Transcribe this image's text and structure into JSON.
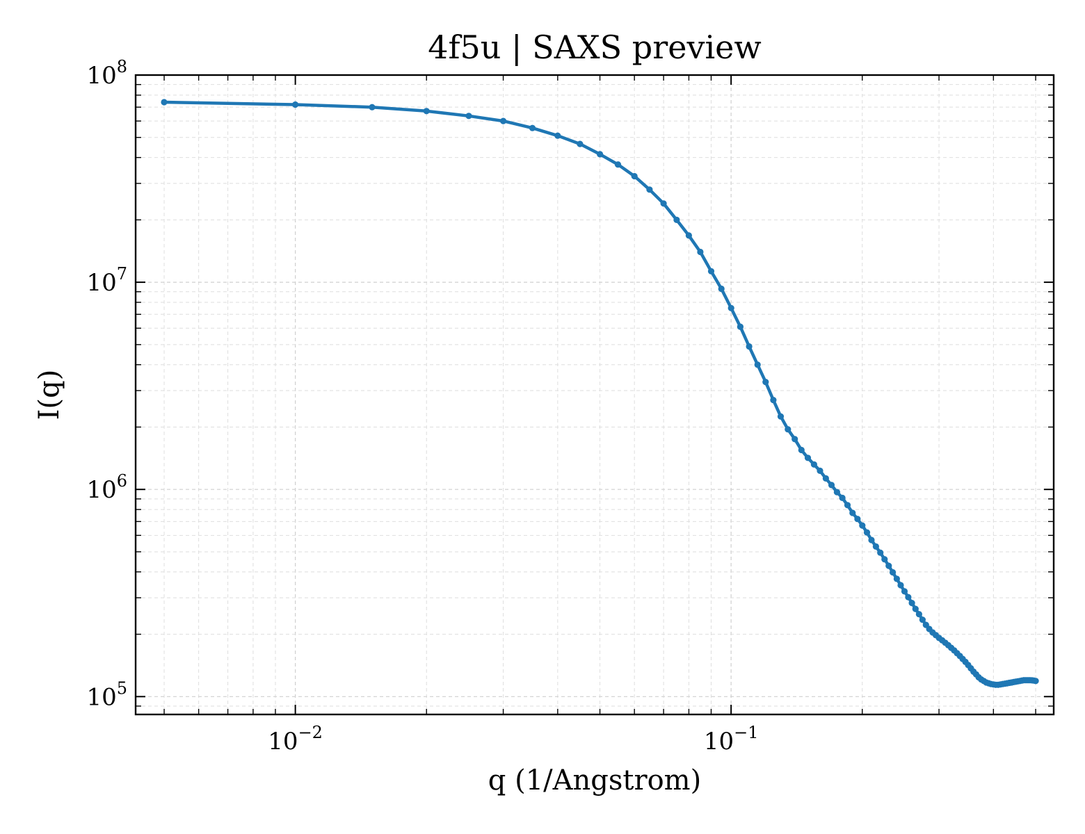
{
  "chart_data": {
    "type": "line",
    "title": "4f5u | SAXS preview",
    "xlabel": "q (1/Angstrom)",
    "ylabel": "I(q)",
    "xscale": "log",
    "yscale": "log",
    "xlim": [
      0.0043,
      0.55
    ],
    "ylim": [
      82000,
      100000000
    ],
    "grid": true,
    "x_ticks": [
      {
        "base": "10",
        "exp": "−2",
        "value": 0.01
      },
      {
        "base": "10",
        "exp": "−1",
        "value": 0.1
      }
    ],
    "y_ticks": [
      {
        "base": "10",
        "exp": "5",
        "value": 100000
      },
      {
        "base": "10",
        "exp": "6",
        "value": 1000000
      },
      {
        "base": "10",
        "exp": "7",
        "value": 10000000
      },
      {
        "base": "10",
        "exp": "8",
        "value": 100000000
      }
    ],
    "colors": {
      "series": "#1f77b4"
    },
    "series": [
      {
        "marker": "circle",
        "x": [
          0.005,
          0.01,
          0.015,
          0.02,
          0.025,
          0.03,
          0.035,
          0.04,
          0.045,
          0.05,
          0.055,
          0.06,
          0.065,
          0.07,
          0.075,
          0.08,
          0.085,
          0.09,
          0.095,
          0.1,
          0.105,
          0.11,
          0.115,
          0.12,
          0.125,
          0.13,
          0.135,
          0.14,
          0.145,
          0.15,
          0.155,
          0.16,
          0.165,
          0.17,
          0.175,
          0.18,
          0.185,
          0.19,
          0.195,
          0.2,
          0.205,
          0.21,
          0.215,
          0.22,
          0.225,
          0.23,
          0.235,
          0.24,
          0.245,
          0.25,
          0.255,
          0.26,
          0.265,
          0.27,
          0.275,
          0.28,
          0.285,
          0.29,
          0.295,
          0.3,
          0.305,
          0.31,
          0.315,
          0.32,
          0.325,
          0.33,
          0.335,
          0.34,
          0.345,
          0.35,
          0.355,
          0.36,
          0.365,
          0.37,
          0.375,
          0.38,
          0.385,
          0.39,
          0.395,
          0.4,
          0.405,
          0.41,
          0.415,
          0.42,
          0.425,
          0.43,
          0.435,
          0.44,
          0.445,
          0.45,
          0.455,
          0.46,
          0.465,
          0.47,
          0.475,
          0.48,
          0.485,
          0.49,
          0.495,
          0.5
        ],
        "y": [
          74000000,
          72000000,
          70000000,
          67000000,
          63500000,
          60000000,
          55500000,
          51000000,
          46500000,
          41500000,
          37000000,
          32500000,
          28000000,
          24000000,
          20000000,
          16800000,
          14000000,
          11300000,
          9300000,
          7500000,
          6100000,
          4900000,
          4000000,
          3300000,
          2700000,
          2250000,
          1950000,
          1750000,
          1550000,
          1420000,
          1320000,
          1230000,
          1130000,
          1050000,
          970000,
          910000,
          840000,
          770000,
          720000,
          670000,
          620000,
          570000,
          530000,
          495000,
          460000,
          428000,
          398000,
          370000,
          345000,
          322000,
          302000,
          283000,
          265000,
          250000,
          235000,
          222000,
          212000,
          204000,
          198000,
          192000,
          187000,
          182000,
          177000,
          172000,
          167000,
          162000,
          157000,
          152000,
          147000,
          142000,
          137000,
          132000,
          128000,
          124000,
          121000,
          119000,
          117000,
          116000,
          115000,
          114500,
          114000,
          114000,
          114500,
          115000,
          115500,
          116000,
          116500,
          117000,
          117500,
          118000,
          118500,
          119000,
          119500,
          120000,
          120000,
          120000,
          120000,
          119800,
          119500,
          119000
        ]
      }
    ]
  }
}
